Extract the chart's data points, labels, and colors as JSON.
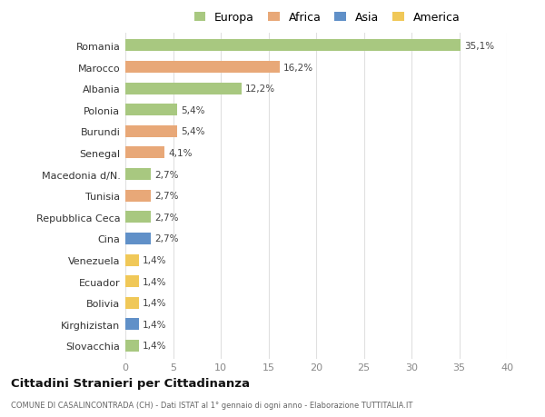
{
  "countries": [
    "Romania",
    "Marocco",
    "Albania",
    "Polonia",
    "Burundi",
    "Senegal",
    "Macedonia d/N.",
    "Tunisia",
    "Repubblica Ceca",
    "Cina",
    "Venezuela",
    "Ecuador",
    "Bolivia",
    "Kirghizistan",
    "Slovacchia"
  ],
  "values": [
    35.1,
    16.2,
    12.2,
    5.4,
    5.4,
    4.1,
    2.7,
    2.7,
    2.7,
    2.7,
    1.4,
    1.4,
    1.4,
    1.4,
    1.4
  ],
  "labels": [
    "35,1%",
    "16,2%",
    "12,2%",
    "5,4%",
    "5,4%",
    "4,1%",
    "2,7%",
    "2,7%",
    "2,7%",
    "2,7%",
    "1,4%",
    "1,4%",
    "1,4%",
    "1,4%",
    "1,4%"
  ],
  "colors": [
    "#a8c880",
    "#e8a878",
    "#a8c880",
    "#a8c880",
    "#e8a878",
    "#e8a878",
    "#a8c880",
    "#e8a878",
    "#a8c880",
    "#6090c8",
    "#f0c858",
    "#f0c858",
    "#f0c858",
    "#6090c8",
    "#a8c880"
  ],
  "legend_labels": [
    "Europa",
    "Africa",
    "Asia",
    "America"
  ],
  "legend_colors": [
    "#a8c880",
    "#e8a878",
    "#6090c8",
    "#f0c858"
  ],
  "title": "Cittadini Stranieri per Cittadinanza",
  "subtitle": "COMUNE DI CASALINCONTRADA (CH) - Dati ISTAT al 1° gennaio di ogni anno - Elaborazione TUTTITALIA.IT",
  "xlim": [
    0,
    40
  ],
  "xticks": [
    0,
    5,
    10,
    15,
    20,
    25,
    30,
    35,
    40
  ],
  "background_color": "#ffffff",
  "grid_color": "#e0e0e0",
  "bar_height": 0.55
}
